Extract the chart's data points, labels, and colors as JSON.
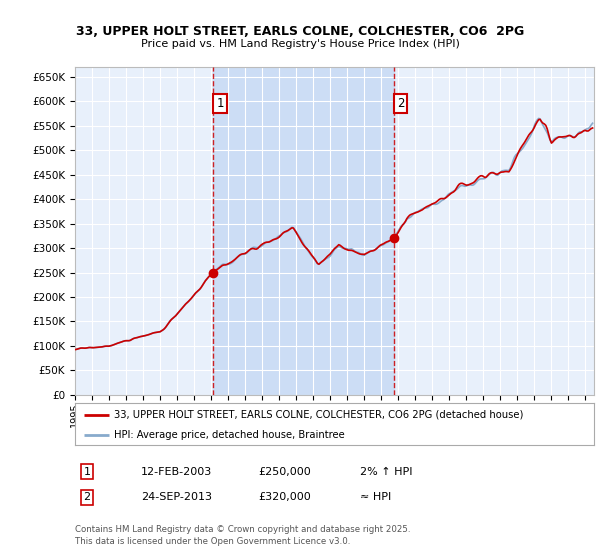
{
  "title_line1": "33, UPPER HOLT STREET, EARLS COLNE, COLCHESTER, CO6  2PG",
  "title_line2": "Price paid vs. HM Land Registry's House Price Index (HPI)",
  "ylim": [
    0,
    670000
  ],
  "yticks": [
    0,
    50000,
    100000,
    150000,
    200000,
    250000,
    300000,
    350000,
    400000,
    450000,
    500000,
    550000,
    600000,
    650000
  ],
  "ytick_labels": [
    "£0",
    "£50K",
    "£100K",
    "£150K",
    "£200K",
    "£250K",
    "£300K",
    "£350K",
    "£400K",
    "£450K",
    "£500K",
    "£550K",
    "£600K",
    "£650K"
  ],
  "bg_color": "#ddeeff",
  "plot_bg": "#e8f0fb",
  "grid_color": "#ffffff",
  "line_color_red": "#cc0000",
  "line_color_blue": "#88aacc",
  "shade_color": "#ccddf5",
  "sale1_date": 2003.12,
  "sale1_price": 250000,
  "sale1_label": "1",
  "sale2_date": 2013.73,
  "sale2_price": 320000,
  "sale2_label": "2",
  "legend_red": "33, UPPER HOLT STREET, EARLS COLNE, COLCHESTER, CO6 2PG (detached house)",
  "legend_blue": "HPI: Average price, detached house, Braintree",
  "footnote": "Contains HM Land Registry data © Crown copyright and database right 2025.\nThis data is licensed under the Open Government Licence v3.0.",
  "xmin": 1995,
  "xmax": 2025.5
}
